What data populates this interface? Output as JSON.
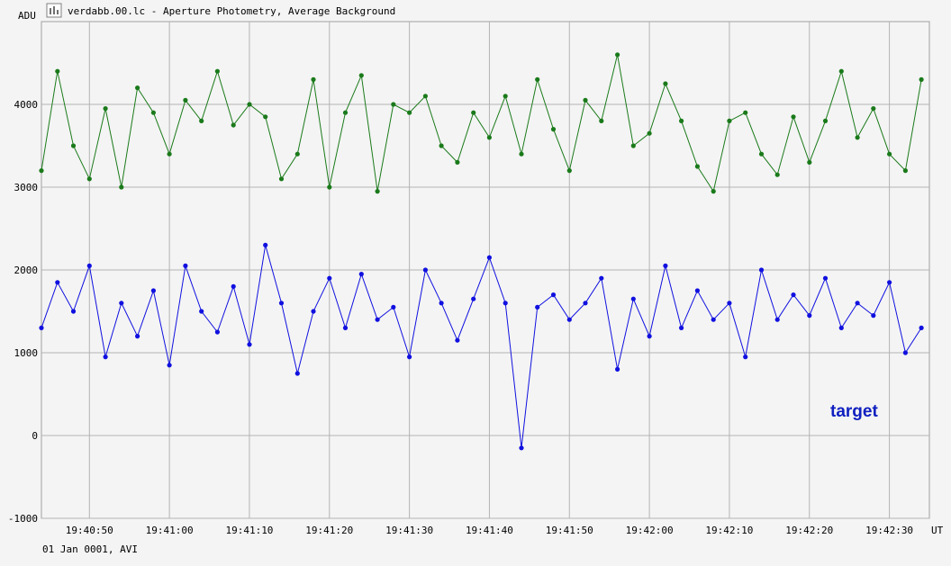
{
  "window": {
    "title": "verdabb.00.lc - Aperture Photometry, Average Background",
    "icon": "lightcurve-app-icon"
  },
  "footer": {
    "date_text": "01 Jan 0001, AVI"
  },
  "colors": {
    "background": "#f4f4f4",
    "grid": "#b4b4b4",
    "series_top": "#1a7a1a",
    "series_bottom": "#1010e0",
    "target_label": "#1020c0"
  },
  "chart_data": {
    "type": "line",
    "title": "verdabb.00.lc - Aperture Photometry, Average Background",
    "ylabel": "ADU",
    "xlabel": "UT",
    "ylim": [
      -1000,
      5000
    ],
    "xlim": [
      "19:40:44",
      "19:42:35"
    ],
    "yticks": [
      -1000,
      0,
      1000,
      2000,
      3000,
      4000
    ],
    "xticks": [
      "19:40:50",
      "19:41:00",
      "19:41:10",
      "19:41:20",
      "19:41:30",
      "19:41:40",
      "19:41:50",
      "19:42:00",
      "19:42:10",
      "19:42:20",
      "19:42:30"
    ],
    "grid": true,
    "annotations": [
      {
        "text": "target",
        "series": 1
      }
    ],
    "series": [
      {
        "color": "#1a7a1a",
        "x": [
          "19:40:44",
          "19:40:46",
          "19:40:48",
          "19:40:50",
          "19:40:52",
          "19:40:54",
          "19:40:56",
          "19:40:58",
          "19:41:00",
          "19:41:02",
          "19:41:04",
          "19:41:06",
          "19:41:08",
          "19:41:10",
          "19:41:12",
          "19:41:14",
          "19:41:16",
          "19:41:18",
          "19:41:20",
          "19:41:22",
          "19:41:24",
          "19:41:26",
          "19:41:28",
          "19:41:30",
          "19:41:32",
          "19:41:34",
          "19:41:36",
          "19:41:38",
          "19:41:40",
          "19:41:42",
          "19:41:44",
          "19:41:46",
          "19:41:48",
          "19:41:50",
          "19:41:52",
          "19:41:54",
          "19:41:56",
          "19:41:58",
          "19:42:00",
          "19:42:02",
          "19:42:04",
          "19:42:06",
          "19:42:08",
          "19:42:10",
          "19:42:12",
          "19:42:14",
          "19:42:16",
          "19:42:18",
          "19:42:20",
          "19:42:22",
          "19:42:24",
          "19:42:26",
          "19:42:28",
          "19:42:30",
          "19:42:32",
          "19:42:34"
        ],
        "values": [
          3200,
          4400,
          3500,
          3100,
          3950,
          3000,
          4200,
          3900,
          3400,
          4050,
          3800,
          4400,
          3750,
          4000,
          3850,
          3100,
          3400,
          4300,
          3000,
          3900,
          4350,
          2950,
          4000,
          3900,
          4100,
          3500,
          3300,
          3900,
          3600,
          4100,
          3400,
          4300,
          3700,
          3200,
          4050,
          3800,
          4600,
          3500,
          3650,
          4250,
          3800,
          3250,
          2950,
          3800,
          3900,
          3400,
          3150,
          3850,
          3300,
          3800,
          4400,
          3600,
          3950,
          3400,
          3200,
          4300
        ]
      },
      {
        "color": "#1010e0",
        "x": [
          "19:40:44",
          "19:40:46",
          "19:40:48",
          "19:40:50",
          "19:40:52",
          "19:40:54",
          "19:40:56",
          "19:40:58",
          "19:41:00",
          "19:41:02",
          "19:41:04",
          "19:41:06",
          "19:41:08",
          "19:41:10",
          "19:41:12",
          "19:41:14",
          "19:41:16",
          "19:41:18",
          "19:41:20",
          "19:41:22",
          "19:41:24",
          "19:41:26",
          "19:41:28",
          "19:41:30",
          "19:41:32",
          "19:41:34",
          "19:41:36",
          "19:41:38",
          "19:41:40",
          "19:41:42",
          "19:41:44",
          "19:41:46",
          "19:41:48",
          "19:41:50",
          "19:41:52",
          "19:41:54",
          "19:41:56",
          "19:41:58",
          "19:42:00",
          "19:42:02",
          "19:42:04",
          "19:42:06",
          "19:42:08",
          "19:42:10",
          "19:42:12",
          "19:42:14",
          "19:42:16",
          "19:42:18",
          "19:42:20",
          "19:42:22",
          "19:42:24",
          "19:42:26",
          "19:42:28",
          "19:42:30",
          "19:42:32",
          "19:42:34"
        ],
        "values": [
          1300,
          1850,
          1500,
          2050,
          950,
          1600,
          1200,
          1750,
          850,
          2050,
          1500,
          1250,
          1800,
          1100,
          2300,
          1600,
          750,
          1500,
          1900,
          1300,
          1950,
          1400,
          1550,
          950,
          2000,
          1600,
          1150,
          1650,
          2150,
          1600,
          -150,
          1550,
          1700,
          1400,
          1600,
          1900,
          800,
          1650,
          1200,
          2050,
          1300,
          1750,
          1400,
          1600,
          950,
          2000,
          1400,
          1700,
          1450,
          1900,
          1300,
          1600,
          1450,
          1850,
          1000,
          1300
        ]
      }
    ]
  }
}
